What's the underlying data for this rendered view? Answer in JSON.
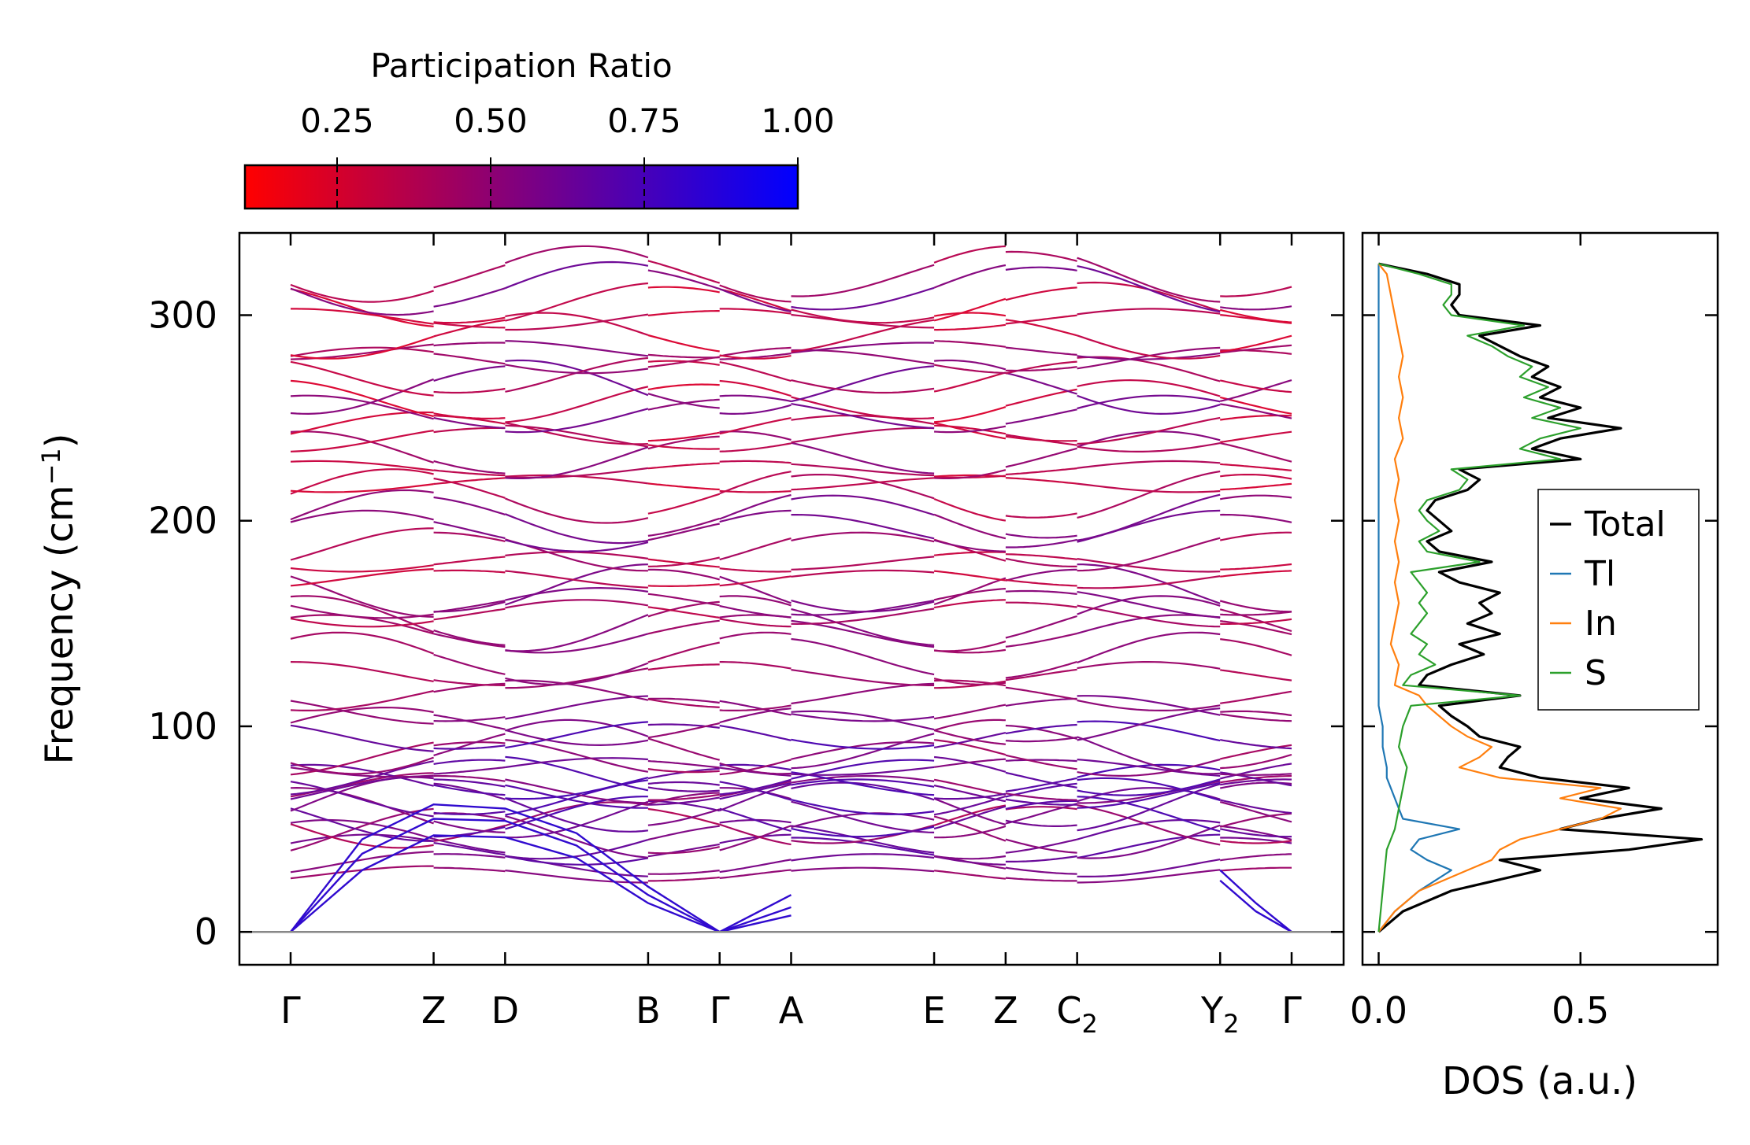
{
  "chart_data": [
    {
      "type": "line",
      "name": "phonon-band-structure",
      "ylabel": "Frequency (cm",
      "ylabel_sup": "−1",
      "ylabel_tail": ")",
      "ylim": [
        -16,
        340
      ],
      "yticks": [
        0,
        100,
        200,
        300
      ],
      "ytick_labels": [
        "0",
        "100",
        "200",
        "300"
      ],
      "path_labels": [
        {
          "main": "Γ",
          "sub": ""
        },
        {
          "main": "Z",
          "sub": ""
        },
        {
          "main": "D",
          "sub": ""
        },
        {
          "main": "B",
          "sub": ""
        },
        {
          "main": "Γ",
          "sub": ""
        },
        {
          "main": "A",
          "sub": ""
        },
        {
          "main": "E",
          "sub": ""
        },
        {
          "main": "Z",
          "sub": ""
        },
        {
          "main": "C",
          "sub": "2"
        },
        {
          "main": "Y",
          "sub": "2"
        },
        {
          "main": "Γ",
          "sub": ""
        }
      ],
      "path_positions": [
        0,
        1,
        1.5,
        2.5,
        3,
        3.5,
        4.5,
        5,
        5.5,
        6.5,
        7
      ],
      "segment_breaks": [
        1,
        1.5,
        2.5,
        3,
        3.5
      ],
      "colorbar": {
        "title": "Participation Ratio",
        "range": [
          0.1,
          1.0
        ],
        "ticks": [
          0.25,
          0.5,
          0.75,
          1.0
        ],
        "tick_labels": [
          "0.25",
          "0.50",
          "0.75",
          "1.00"
        ],
        "color_low": "#ff0000",
        "color_high": "#0000ff"
      },
      "acoustic_branches_approx": [
        {
          "name": "acoustic-1",
          "x": [
            0,
            0.5,
            1,
            1.5,
            2,
            2.5,
            3,
            3.5
          ],
          "y": [
            0,
            45,
            62,
            60,
            48,
            22,
            0,
            18
          ]
        },
        {
          "name": "acoustic-2",
          "x": [
            0,
            0.5,
            1,
            1.5,
            2,
            2.5,
            3,
            3.5
          ],
          "y": [
            0,
            38,
            55,
            54,
            42,
            18,
            0,
            12
          ]
        },
        {
          "name": "acoustic-3",
          "x": [
            0,
            0.5,
            1,
            1.5,
            2,
            2.5,
            3,
            3.5
          ],
          "y": [
            0,
            30,
            47,
            46,
            36,
            14,
            0,
            8
          ]
        },
        {
          "name": "acoustic-right-1",
          "x": [
            6.5,
            6.75,
            7
          ],
          "y": [
            30,
            14,
            0
          ]
        },
        {
          "name": "acoustic-right-2",
          "x": [
            6.5,
            6.75,
            7
          ],
          "y": [
            25,
            10,
            0
          ]
        }
      ],
      "optical_band_levels_approx": [
        28,
        33,
        40,
        45,
        48,
        52,
        55,
        58,
        62,
        65,
        68,
        70,
        73,
        76,
        80,
        85,
        90,
        95,
        100,
        108,
        115,
        125,
        133,
        145,
        150,
        155,
        160,
        166,
        172,
        180,
        186,
        195,
        202,
        212,
        218,
        225,
        232,
        240,
        245,
        252,
        258,
        265,
        270,
        278,
        283,
        290,
        298,
        305,
        313,
        320
      ]
    },
    {
      "type": "line",
      "name": "density-of-states",
      "xlabel": "DOS (a.u.)",
      "xlim": [
        -0.04,
        0.84
      ],
      "xticks": [
        0.0,
        0.5
      ],
      "xtick_labels": [
        "0.0",
        "0.5"
      ],
      "ylim": [
        -16,
        340
      ],
      "legend_position": "center-right",
      "series": [
        {
          "name": "Total",
          "color": "#000000",
          "frequency": [
            0,
            10,
            20,
            30,
            35,
            40,
            45,
            50,
            55,
            60,
            65,
            70,
            75,
            80,
            85,
            90,
            95,
            100,
            105,
            110,
            115,
            120,
            125,
            130,
            135,
            140,
            145,
            150,
            155,
            160,
            165,
            170,
            175,
            180,
            185,
            190,
            195,
            200,
            205,
            210,
            215,
            220,
            225,
            230,
            235,
            240,
            245,
            250,
            255,
            260,
            265,
            270,
            275,
            280,
            285,
            290,
            295,
            300,
            305,
            310,
            315,
            320,
            325
          ],
          "dos": [
            0.0,
            0.06,
            0.18,
            0.4,
            0.3,
            0.62,
            0.8,
            0.45,
            0.55,
            0.7,
            0.5,
            0.62,
            0.4,
            0.3,
            0.32,
            0.35,
            0.25,
            0.22,
            0.18,
            0.15,
            0.35,
            0.1,
            0.12,
            0.18,
            0.26,
            0.2,
            0.3,
            0.22,
            0.28,
            0.25,
            0.3,
            0.2,
            0.15,
            0.28,
            0.15,
            0.12,
            0.18,
            0.15,
            0.12,
            0.14,
            0.22,
            0.25,
            0.2,
            0.5,
            0.38,
            0.45,
            0.6,
            0.42,
            0.5,
            0.4,
            0.45,
            0.38,
            0.42,
            0.35,
            0.3,
            0.25,
            0.4,
            0.2,
            0.18,
            0.2,
            0.2,
            0.12,
            0.0
          ]
        },
        {
          "name": "Tl",
          "color": "#1f77b4",
          "frequency": [
            0,
            10,
            20,
            30,
            35,
            40,
            45,
            50,
            55,
            60,
            65,
            70,
            75,
            80,
            90,
            100,
            110,
            115,
            120,
            150,
            200,
            250,
            300,
            320,
            325
          ],
          "dos": [
            0.0,
            0.04,
            0.1,
            0.18,
            0.12,
            0.08,
            0.1,
            0.2,
            0.06,
            0.05,
            0.04,
            0.03,
            0.02,
            0.02,
            0.01,
            0.01,
            0.0,
            0.0,
            0.0,
            0.0,
            0.0,
            0.0,
            0.0,
            0.0,
            0.0
          ]
        },
        {
          "name": "In",
          "color": "#ff7f0e",
          "frequency": [
            0,
            10,
            20,
            30,
            35,
            40,
            45,
            50,
            55,
            60,
            65,
            70,
            75,
            80,
            85,
            90,
            95,
            100,
            105,
            110,
            115,
            120,
            130,
            140,
            150,
            160,
            170,
            180,
            190,
            200,
            210,
            220,
            230,
            240,
            250,
            260,
            270,
            280,
            290,
            300,
            310,
            320,
            325
          ],
          "dos": [
            0.0,
            0.04,
            0.1,
            0.22,
            0.28,
            0.3,
            0.35,
            0.45,
            0.55,
            0.6,
            0.45,
            0.55,
            0.3,
            0.2,
            0.25,
            0.28,
            0.22,
            0.18,
            0.15,
            0.12,
            0.1,
            0.04,
            0.05,
            0.03,
            0.04,
            0.05,
            0.04,
            0.05,
            0.04,
            0.05,
            0.04,
            0.05,
            0.04,
            0.06,
            0.05,
            0.06,
            0.05,
            0.06,
            0.05,
            0.04,
            0.03,
            0.02,
            0.0
          ]
        },
        {
          "name": "S",
          "color": "#2ca02c",
          "frequency": [
            0,
            20,
            40,
            50,
            60,
            70,
            80,
            90,
            100,
            110,
            115,
            120,
            125,
            130,
            135,
            140,
            145,
            150,
            155,
            160,
            165,
            170,
            175,
            180,
            185,
            190,
            195,
            200,
            205,
            210,
            215,
            220,
            225,
            230,
            235,
            240,
            245,
            250,
            255,
            260,
            265,
            270,
            275,
            280,
            285,
            290,
            295,
            300,
            305,
            310,
            315,
            320,
            325
          ],
          "dos": [
            0.0,
            0.01,
            0.02,
            0.04,
            0.05,
            0.06,
            0.07,
            0.05,
            0.06,
            0.08,
            0.35,
            0.06,
            0.08,
            0.14,
            0.1,
            0.12,
            0.08,
            0.1,
            0.12,
            0.1,
            0.12,
            0.1,
            0.08,
            0.25,
            0.12,
            0.1,
            0.15,
            0.12,
            0.1,
            0.12,
            0.2,
            0.22,
            0.18,
            0.45,
            0.35,
            0.4,
            0.5,
            0.38,
            0.45,
            0.36,
            0.42,
            0.35,
            0.38,
            0.32,
            0.28,
            0.22,
            0.36,
            0.18,
            0.16,
            0.18,
            0.18,
            0.1,
            0.0
          ]
        }
      ]
    }
  ]
}
